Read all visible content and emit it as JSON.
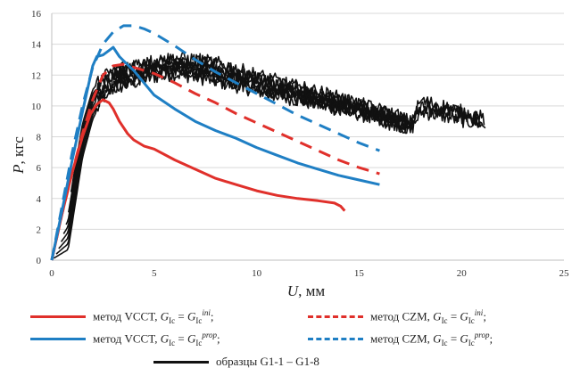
{
  "chart_data": {
    "type": "line",
    "xlabel": "U, мм",
    "ylabel": "P, кгс",
    "xlim": [
      0,
      25
    ],
    "ylim": [
      0,
      16
    ],
    "x_ticks": [
      "0",
      "5",
      "10",
      "15",
      "20",
      "25"
    ],
    "y_ticks": [
      "0",
      "2",
      "4",
      "6",
      "8",
      "10",
      "12",
      "14",
      "16"
    ],
    "grid": "horizontal",
    "legend_position": "bottom",
    "series": [
      {
        "name": "метод VCCT, G_Ic = G_Ic^ini;",
        "color": "#e0302b",
        "style": "solid",
        "x": [
          0,
          0.5,
          1.0,
          1.5,
          1.9,
          2.2,
          2.5,
          2.8,
          3.0,
          3.3,
          3.7,
          4.0,
          4.5,
          5.0,
          6.0,
          7.0,
          8.0,
          9.0,
          10.0,
          11.0,
          12.0,
          13.0,
          13.8,
          14.1,
          14.3
        ],
        "y": [
          0,
          3.0,
          5.7,
          8.0,
          9.5,
          10.1,
          10.4,
          10.2,
          9.8,
          9.0,
          8.2,
          7.8,
          7.4,
          7.2,
          6.5,
          5.9,
          5.3,
          4.9,
          4.5,
          4.2,
          4.0,
          3.85,
          3.7,
          3.5,
          3.2
        ]
      },
      {
        "name": "метод CZM, G_Ic = G_Ic^ini;",
        "color": "#e0302b",
        "style": "dashed",
        "x": [
          0,
          0.5,
          1.0,
          1.5,
          2.0,
          2.5,
          3.0,
          3.5,
          4.0,
          5.0,
          6.0,
          7.0,
          8.0,
          9.0,
          10.0,
          11.0,
          12.0,
          13.0,
          14.0,
          15.0,
          16.0
        ],
        "y": [
          0,
          3.0,
          5.7,
          8.2,
          10.4,
          12.0,
          12.6,
          12.7,
          12.5,
          12.1,
          11.5,
          10.8,
          10.2,
          9.5,
          8.9,
          8.3,
          7.7,
          7.1,
          6.5,
          6.0,
          5.6
        ]
      },
      {
        "name": "метод VCCT, G_Ic = G_Ic^prop;",
        "color": "#1f7fc4",
        "style": "solid",
        "x": [
          0,
          0.5,
          1.0,
          1.5,
          2.0,
          2.2,
          2.5,
          2.8,
          3.0,
          3.3,
          3.6,
          4.0,
          4.5,
          5.0,
          6.0,
          7.0,
          8.0,
          9.0,
          10.0,
          11.0,
          12.0,
          13.0,
          14.0,
          15.0,
          16.0
        ],
        "y": [
          0,
          3.2,
          6.5,
          9.6,
          12.6,
          13.2,
          13.3,
          13.6,
          13.8,
          13.2,
          12.8,
          12.3,
          11.5,
          10.7,
          9.8,
          9.0,
          8.4,
          7.9,
          7.3,
          6.8,
          6.3,
          5.9,
          5.5,
          5.2,
          4.9
        ]
      },
      {
        "name": "метод CZM, G_Ic = G_Ic^prop;",
        "color": "#1f7fc4",
        "style": "dashed",
        "x": [
          0,
          0.5,
          1.0,
          1.5,
          2.0,
          2.5,
          3.0,
          3.5,
          4.0,
          4.5,
          5.0,
          6.0,
          7.0,
          8.0,
          9.0,
          10.0,
          11.0,
          12.0,
          13.0,
          14.0,
          15.0,
          16.0
        ],
        "y": [
          0,
          3.5,
          7.0,
          10.0,
          12.5,
          14.0,
          14.8,
          15.2,
          15.2,
          15.0,
          14.7,
          13.9,
          13.0,
          12.2,
          11.5,
          10.8,
          10.1,
          9.4,
          8.8,
          8.2,
          7.6,
          7.1
        ]
      },
      {
        "name": "образцы G1-1 – G1-8",
        "color": "#111111",
        "style": "solid",
        "band": true,
        "x": [
          0,
          0.8,
          1.5,
          2.0,
          2.5,
          3.0,
          4.0,
          5.0,
          6.0,
          7.0,
          8.0,
          9.0,
          10.0,
          11.0,
          12.0,
          13.0,
          14.0,
          15.0,
          16.0,
          17.0,
          17.5,
          18.0,
          19.0,
          20.0,
          21.0,
          21.2
        ],
        "y_low": [
          0,
          0.5,
          6.5,
          9.0,
          10.4,
          11.0,
          11.4,
          11.8,
          12.0,
          11.8,
          11.5,
          11.2,
          10.9,
          10.6,
          10.3,
          10.0,
          9.7,
          9.4,
          9.0,
          8.6,
          8.2,
          9.4,
          9.2,
          8.9,
          8.7,
          8.5
        ],
        "y_high": [
          0.8,
          3.5,
          9.0,
          11.2,
          12.0,
          12.4,
          12.8,
          13.0,
          13.2,
          13.1,
          12.9,
          12.5,
          12.1,
          11.7,
          11.3,
          11.0,
          10.6,
          10.2,
          9.8,
          9.4,
          9.0,
          10.4,
          10.1,
          9.7,
          9.3,
          9.0
        ]
      }
    ]
  },
  "legend": {
    "vcct_ini": {
      "text_method": "метод VCCT, ",
      "g": "G",
      "sub": "Ic",
      "eq": " = ",
      "g2": "G",
      "sub2": "Ic",
      "sup2": "ini",
      "end": ";"
    },
    "czm_ini": {
      "text_method": "метод CZM, ",
      "g": "G",
      "sub": "Ic",
      "eq": " = ",
      "g2": "G",
      "sub2": "Ic",
      "sup2": "ini",
      "end": ";"
    },
    "vcct_prop": {
      "text_method": "метод VCCT, ",
      "g": "G",
      "sub": "Ic",
      "eq": " = ",
      "g2": "G",
      "sub2": "Ic",
      "sup2": "prop",
      "end": ";"
    },
    "czm_prop": {
      "text_method": "метод CZM, ",
      "g": "G",
      "sub": "Ic",
      "eq": " = ",
      "g2": "G",
      "sub2": "Ic",
      "sup2": "prop",
      "end": ";"
    },
    "samples": "образцы G1-1 – G1-8"
  },
  "axis": {
    "x_symbol": "U",
    "x_unit": ", мм",
    "y_symbol": "P",
    "y_unit": ", кгс"
  }
}
